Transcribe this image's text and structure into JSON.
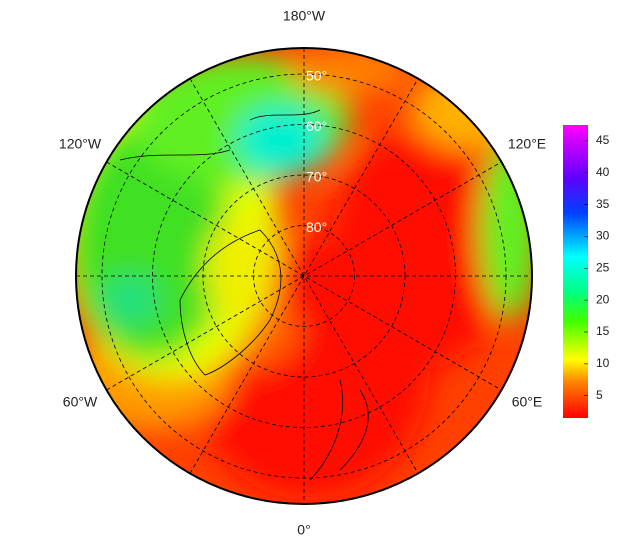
{
  "map": {
    "longitude_labels": {
      "top": "180°W",
      "upper_left": "120°W",
      "upper_right": "120°E",
      "lower_left": "60°W",
      "lower_right": "60°E",
      "bottom": "0°"
    },
    "latitude_labels": [
      {
        "value": 50,
        "label": "50°"
      },
      {
        "value": 60,
        "label": "60°"
      },
      {
        "value": 70,
        "label": "70°"
      },
      {
        "value": 80,
        "label": "80°"
      }
    ]
  },
  "colorbar": {
    "range": [
      1.5,
      47.5
    ],
    "ticks": [
      5,
      10,
      15,
      20,
      25,
      30,
      35,
      40,
      45
    ]
  }
}
